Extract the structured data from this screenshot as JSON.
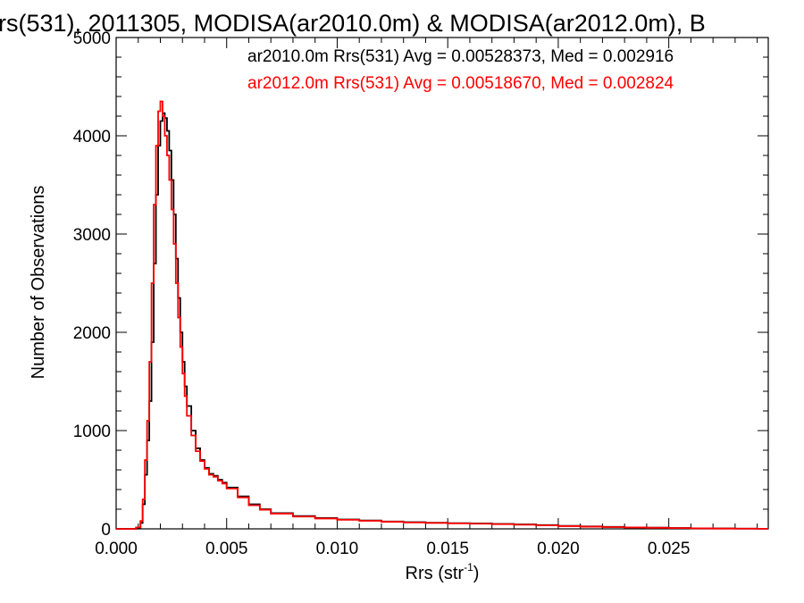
{
  "chart_data": {
    "type": "line",
    "title": "rs(531), 2011305, MODISA(ar2010.0m) & MODISA(ar2012.0m), B",
    "xlabel": "Rrs (str",
    "xlabel_sup": "-1",
    "xlabel_close": ")",
    "ylabel": "Number of Observations",
    "xlim": [
      0.0,
      0.0295
    ],
    "ylim": [
      0,
      5000
    ],
    "x_ticks": [
      "0.000",
      "0.005",
      "0.010",
      "0.015",
      "0.020",
      "0.025"
    ],
    "y_ticks": [
      "0",
      "1000",
      "2000",
      "3000",
      "4000",
      "5000"
    ],
    "series": [
      {
        "name": "ar2010.0m",
        "legend": "ar2010.0m Rrs(531) Avg = 0.00528373, Med = 0.002916",
        "color": "#000000",
        "x": [
          0.0,
          0.0006,
          0.0009,
          0.0011,
          0.0012,
          0.0013,
          0.0014,
          0.0015,
          0.0016,
          0.0017,
          0.0018,
          0.0019,
          0.002,
          0.0021,
          0.0022,
          0.0023,
          0.0024,
          0.0025,
          0.0026,
          0.0027,
          0.0028,
          0.0029,
          0.003,
          0.0031,
          0.0032,
          0.0034,
          0.0036,
          0.0038,
          0.004,
          0.0042,
          0.0044,
          0.0046,
          0.0048,
          0.005,
          0.0055,
          0.006,
          0.0065,
          0.007,
          0.008,
          0.009,
          0.01,
          0.011,
          0.012,
          0.013,
          0.014,
          0.015,
          0.016,
          0.017,
          0.018,
          0.019,
          0.02,
          0.021,
          0.022,
          0.023,
          0.024,
          0.025,
          0.026,
          0.027,
          0.028,
          0.029
        ],
        "y": [
          0,
          0,
          10,
          60,
          250,
          550,
          900,
          1300,
          1900,
          2700,
          3400,
          3900,
          4150,
          4230,
          4180,
          4050,
          3850,
          3550,
          3200,
          2750,
          2350,
          2000,
          1700,
          1450,
          1250,
          1000,
          820,
          700,
          620,
          560,
          540,
          500,
          470,
          420,
          330,
          250,
          200,
          160,
          130,
          110,
          95,
          85,
          75,
          68,
          62,
          58,
          55,
          50,
          45,
          38,
          30,
          25,
          20,
          15,
          12,
          9,
          6,
          4,
          2,
          1
        ]
      },
      {
        "name": "ar2012.0m",
        "legend": "ar2012.0m Rrs(531) Avg = 0.00518670, Med = 0.002824",
        "color": "#ff0000",
        "x": [
          0.0,
          0.0006,
          0.0009,
          0.0011,
          0.0012,
          0.0013,
          0.0014,
          0.0015,
          0.0016,
          0.0017,
          0.0018,
          0.0019,
          0.002,
          0.0021,
          0.0022,
          0.0023,
          0.0024,
          0.0025,
          0.0026,
          0.0027,
          0.0028,
          0.0029,
          0.003,
          0.0031,
          0.0032,
          0.0034,
          0.0036,
          0.0038,
          0.004,
          0.0042,
          0.0044,
          0.0046,
          0.0048,
          0.005,
          0.0055,
          0.006,
          0.0065,
          0.007,
          0.008,
          0.009,
          0.01,
          0.011,
          0.012,
          0.013,
          0.014,
          0.015,
          0.016,
          0.017,
          0.018,
          0.019,
          0.02,
          0.021,
          0.022,
          0.023,
          0.024,
          0.025,
          0.026,
          0.027,
          0.028,
          0.029
        ],
        "y": [
          0,
          0,
          15,
          80,
          300,
          700,
          1100,
          1700,
          2500,
          3300,
          3900,
          4250,
          4350,
          4200,
          4000,
          3800,
          3550,
          3250,
          2900,
          2500,
          2150,
          1850,
          1580,
          1350,
          1150,
          950,
          790,
          690,
          610,
          550,
          530,
          490,
          460,
          410,
          320,
          240,
          195,
          155,
          125,
          105,
          92,
          82,
          72,
          65,
          60,
          56,
          52,
          48,
          42,
          35,
          28,
          22,
          18,
          14,
          11,
          8,
          5,
          3,
          2,
          1
        ]
      }
    ],
    "grid": false
  }
}
